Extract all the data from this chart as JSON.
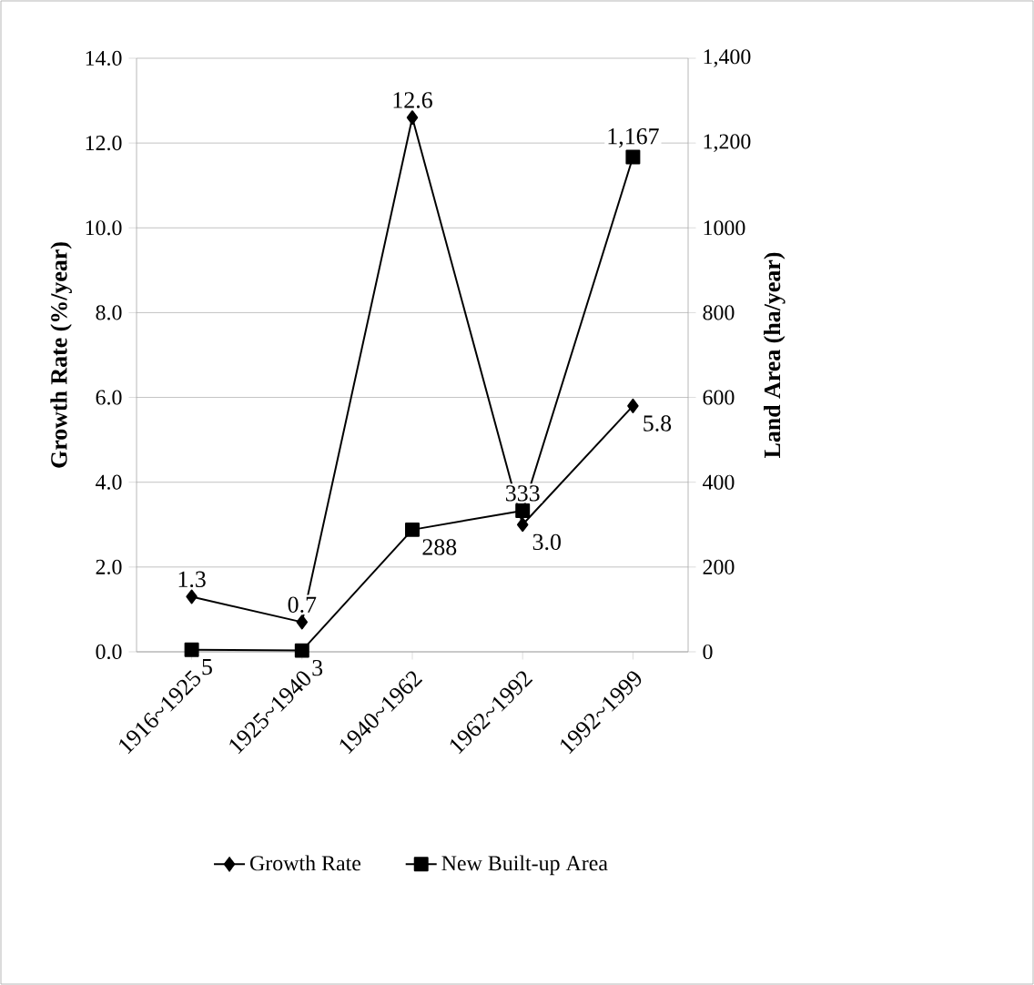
{
  "chart_data": {
    "type": "line",
    "categories": [
      "1916~1925",
      "1925~1940",
      "1940~1962",
      "1962~1992",
      "1992~1999"
    ],
    "ylabel": "Growth Rate (%/year)",
    "y2label": "Land Area (ha/year)",
    "ylim": [
      0,
      14
    ],
    "yticks": [
      {
        "value": 0,
        "label": "0.0"
      },
      {
        "value": 2,
        "label": "2.0"
      },
      {
        "value": 4,
        "label": "4.0"
      },
      {
        "value": 6,
        "label": "6.0"
      },
      {
        "value": 8,
        "label": "8.0"
      },
      {
        "value": 10,
        "label": "10.0"
      },
      {
        "value": 12,
        "label": "12.0"
      },
      {
        "value": 14,
        "label": "14.0"
      }
    ],
    "y2lim": [
      0,
      1400
    ],
    "y2ticks": [
      0,
      200,
      400,
      600,
      800,
      1000,
      {
        "value": 1200,
        "label": "1,200"
      },
      {
        "value": 1400,
        "label": "1,400"
      }
    ],
    "grid": "y",
    "legend": "bottom",
    "series": [
      {
        "name": "Growth Rate",
        "color": "#000000",
        "marker": "diamond",
        "values": [
          1.3,
          0.7,
          12.6,
          3.0,
          5.8
        ],
        "value_labels": [
          "1.3",
          "0.7",
          "12.6",
          "3.0",
          "5.8"
        ]
      },
      {
        "name": "New Built-up Area",
        "color": "#000000",
        "marker": "square",
        "axis": "y2",
        "values": [
          5,
          3,
          288,
          333,
          1167
        ],
        "value_labels": [
          "5",
          "3",
          "288",
          "333",
          "1,167"
        ]
      }
    ]
  }
}
